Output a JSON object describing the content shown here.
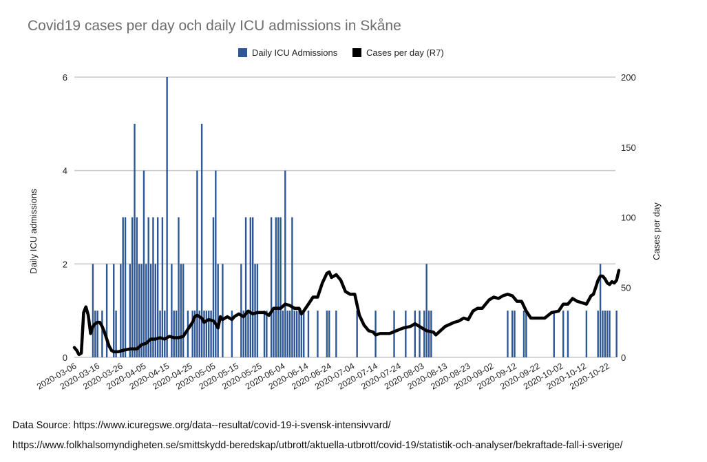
{
  "chart_data": {
    "type": "bar+line",
    "title": "Covid19 cases per day och daily ICU admissions in Skåne",
    "legend": [
      {
        "label": "Daily ICU Admissions",
        "color": "#2e5797"
      },
      {
        "label": "Cases per day (R7)",
        "color": "#000000"
      }
    ],
    "y_left": {
      "label": "Daily ICU admissions",
      "ticks": [
        "0",
        "2",
        "4",
        "6"
      ],
      "range": [
        0,
        6
      ]
    },
    "y_right": {
      "label": "Cases per day",
      "ticks": [
        "0",
        "50",
        "100",
        "150",
        "200"
      ],
      "range": [
        0,
        200
      ]
    },
    "x_axis": {
      "start_date": "2020-03-06",
      "end_date": "2020-10-27",
      "tick_labels": [
        "2020-03-06",
        "2020-03-16",
        "2020-03-26",
        "2020-04-05",
        "2020-04-15",
        "2020-04-25",
        "2020-05-05",
        "2020-05-15",
        "2020-05-25",
        "2020-06-04",
        "2020-06-14",
        "2020-06-24",
        "2020-07-04",
        "2020-07-14",
        "2020-07-24",
        "2020-08-03",
        "2020-08-13",
        "2020-08-23",
        "2020-09-02",
        "2020-09-12",
        "2020-09-22",
        "2020-10-02",
        "2020-10-12",
        "2020-10-22"
      ]
    },
    "grid": true,
    "legend_position": "top",
    "icu_series": {
      "name": "Daily ICU Admissions",
      "points": [
        [
          "2020-03-14",
          2
        ],
        [
          "2020-03-15",
          1
        ],
        [
          "2020-03-16",
          1
        ],
        [
          "2020-03-18",
          1
        ],
        [
          "2020-03-20",
          2
        ],
        [
          "2020-03-23",
          2
        ],
        [
          "2020-03-24",
          1
        ],
        [
          "2020-03-26",
          2
        ],
        [
          "2020-03-27",
          3
        ],
        [
          "2020-03-28",
          3
        ],
        [
          "2020-03-30",
          2
        ],
        [
          "2020-03-31",
          3
        ],
        [
          "2020-04-01",
          5
        ],
        [
          "2020-04-02",
          3
        ],
        [
          "2020-04-03",
          2
        ],
        [
          "2020-04-04",
          2
        ],
        [
          "2020-04-05",
          4
        ],
        [
          "2020-04-06",
          2
        ],
        [
          "2020-04-07",
          3
        ],
        [
          "2020-04-08",
          2
        ],
        [
          "2020-04-09",
          3
        ],
        [
          "2020-04-10",
          2
        ],
        [
          "2020-04-11",
          3
        ],
        [
          "2020-04-12",
          1
        ],
        [
          "2020-04-13",
          3
        ],
        [
          "2020-04-14",
          1
        ],
        [
          "2020-04-15",
          6
        ],
        [
          "2020-04-17",
          2
        ],
        [
          "2020-04-18",
          1
        ],
        [
          "2020-04-19",
          1
        ],
        [
          "2020-04-20",
          3
        ],
        [
          "2020-04-21",
          2
        ],
        [
          "2020-04-22",
          2
        ],
        [
          "2020-04-24",
          1
        ],
        [
          "2020-04-26",
          1
        ],
        [
          "2020-04-27",
          1
        ],
        [
          "2020-04-28",
          4
        ],
        [
          "2020-04-29",
          1
        ],
        [
          "2020-04-30",
          5
        ],
        [
          "2020-05-01",
          1
        ],
        [
          "2020-05-02",
          1
        ],
        [
          "2020-05-03",
          1
        ],
        [
          "2020-05-04",
          1
        ],
        [
          "2020-05-05",
          3
        ],
        [
          "2020-05-06",
          4
        ],
        [
          "2020-05-07",
          2
        ],
        [
          "2020-05-09",
          2
        ],
        [
          "2020-05-13",
          1
        ],
        [
          "2020-05-17",
          2
        ],
        [
          "2020-05-18",
          1
        ],
        [
          "2020-05-19",
          3
        ],
        [
          "2020-05-20",
          1
        ],
        [
          "2020-05-21",
          3
        ],
        [
          "2020-05-22",
          3
        ],
        [
          "2020-05-23",
          2
        ],
        [
          "2020-05-24",
          2
        ],
        [
          "2020-05-27",
          1
        ],
        [
          "2020-05-28",
          1
        ],
        [
          "2020-05-30",
          3
        ],
        [
          "2020-05-31",
          1
        ],
        [
          "2020-06-01",
          3
        ],
        [
          "2020-06-02",
          3
        ],
        [
          "2020-06-03",
          3
        ],
        [
          "2020-06-04",
          1
        ],
        [
          "2020-06-05",
          4
        ],
        [
          "2020-06-06",
          1
        ],
        [
          "2020-06-07",
          1
        ],
        [
          "2020-06-08",
          3
        ],
        [
          "2020-06-09",
          1
        ],
        [
          "2020-06-10",
          1
        ],
        [
          "2020-06-11",
          1
        ],
        [
          "2020-06-12",
          1
        ],
        [
          "2020-06-13",
          1
        ],
        [
          "2020-06-15",
          1
        ],
        [
          "2020-06-19",
          1
        ],
        [
          "2020-06-23",
          1
        ],
        [
          "2020-06-24",
          1
        ],
        [
          "2020-06-27",
          1
        ],
        [
          "2020-07-06",
          1
        ],
        [
          "2020-07-14",
          1
        ],
        [
          "2020-07-22",
          1
        ],
        [
          "2020-07-27",
          1
        ],
        [
          "2020-07-31",
          1
        ],
        [
          "2020-08-02",
          1
        ],
        [
          "2020-08-04",
          1
        ],
        [
          "2020-08-05",
          2
        ],
        [
          "2020-08-06",
          1
        ],
        [
          "2020-08-07",
          1
        ],
        [
          "2020-09-09",
          1
        ],
        [
          "2020-09-11",
          1
        ],
        [
          "2020-09-12",
          1
        ],
        [
          "2020-09-16",
          1
        ],
        [
          "2020-09-17",
          1
        ],
        [
          "2020-09-29",
          1
        ],
        [
          "2020-10-03",
          1
        ],
        [
          "2020-10-05",
          1
        ],
        [
          "2020-10-13",
          1
        ],
        [
          "2020-10-18",
          1
        ],
        [
          "2020-10-19",
          2
        ],
        [
          "2020-10-20",
          1
        ],
        [
          "2020-10-21",
          1
        ],
        [
          "2020-10-22",
          1
        ],
        [
          "2020-10-23",
          1
        ],
        [
          "2020-10-26",
          1
        ]
      ]
    },
    "cases_series": {
      "name": "Cases per day (R7)",
      "points": [
        [
          "2020-03-06",
          7
        ],
        [
          "2020-03-07",
          5
        ],
        [
          "2020-03-08",
          2
        ],
        [
          "2020-03-09",
          3
        ],
        [
          "2020-03-10",
          32
        ],
        [
          "2020-03-11",
          36
        ],
        [
          "2020-03-12",
          30
        ],
        [
          "2020-03-13",
          17
        ],
        [
          "2020-03-14",
          22
        ],
        [
          "2020-03-15",
          24
        ],
        [
          "2020-03-16",
          25
        ],
        [
          "2020-03-17",
          25
        ],
        [
          "2020-03-18",
          22
        ],
        [
          "2020-03-19",
          18
        ],
        [
          "2020-03-20",
          13
        ],
        [
          "2020-03-21",
          8
        ],
        [
          "2020-03-22",
          5
        ],
        [
          "2020-03-23",
          4
        ],
        [
          "2020-03-25",
          4
        ],
        [
          "2020-03-27",
          5
        ],
        [
          "2020-03-30",
          6
        ],
        [
          "2020-04-02",
          6
        ],
        [
          "2020-04-04",
          9
        ],
        [
          "2020-04-06",
          10
        ],
        [
          "2020-04-08",
          13
        ],
        [
          "2020-04-10",
          13
        ],
        [
          "2020-04-12",
          14
        ],
        [
          "2020-04-14",
          13
        ],
        [
          "2020-04-16",
          15
        ],
        [
          "2020-04-18",
          14
        ],
        [
          "2020-04-20",
          14
        ],
        [
          "2020-04-22",
          15
        ],
        [
          "2020-04-24",
          20
        ],
        [
          "2020-04-26",
          25
        ],
        [
          "2020-04-27",
          29
        ],
        [
          "2020-04-28",
          30
        ],
        [
          "2020-04-30",
          28
        ],
        [
          "2020-05-01",
          25
        ],
        [
          "2020-05-03",
          27
        ],
        [
          "2020-05-05",
          26
        ],
        [
          "2020-05-06",
          24
        ],
        [
          "2020-05-07",
          21
        ],
        [
          "2020-05-08",
          29
        ],
        [
          "2020-05-09",
          27
        ],
        [
          "2020-05-11",
          29
        ],
        [
          "2020-05-13",
          27
        ],
        [
          "2020-05-14",
          29
        ],
        [
          "2020-05-15",
          30
        ],
        [
          "2020-05-16",
          31
        ],
        [
          "2020-05-18",
          29
        ],
        [
          "2020-05-20",
          33
        ],
        [
          "2020-05-22",
          31
        ],
        [
          "2020-05-24",
          32
        ],
        [
          "2020-05-27",
          32
        ],
        [
          "2020-05-29",
          30
        ],
        [
          "2020-05-31",
          35
        ],
        [
          "2020-06-03",
          35
        ],
        [
          "2020-06-05",
          38
        ],
        [
          "2020-06-07",
          37
        ],
        [
          "2020-06-09",
          35
        ],
        [
          "2020-06-11",
          35
        ],
        [
          "2020-06-12",
          31
        ],
        [
          "2020-06-13",
          33
        ],
        [
          "2020-06-15",
          38
        ],
        [
          "2020-06-17",
          43
        ],
        [
          "2020-06-19",
          43
        ],
        [
          "2020-06-21",
          53
        ],
        [
          "2020-06-23",
          60
        ],
        [
          "2020-06-24",
          61
        ],
        [
          "2020-06-25",
          57
        ],
        [
          "2020-06-27",
          59
        ],
        [
          "2020-06-29",
          55
        ],
        [
          "2020-07-01",
          47
        ],
        [
          "2020-07-03",
          45
        ],
        [
          "2020-07-05",
          45
        ],
        [
          "2020-07-07",
          30
        ],
        [
          "2020-07-09",
          23
        ],
        [
          "2020-07-11",
          19
        ],
        [
          "2020-07-13",
          18
        ],
        [
          "2020-07-14",
          16
        ],
        [
          "2020-07-16",
          17
        ],
        [
          "2020-07-20",
          17
        ],
        [
          "2020-07-23",
          19
        ],
        [
          "2020-07-26",
          21
        ],
        [
          "2020-07-29",
          22
        ],
        [
          "2020-07-31",
          24
        ],
        [
          "2020-08-03",
          21
        ],
        [
          "2020-08-05",
          19
        ],
        [
          "2020-08-08",
          18
        ],
        [
          "2020-08-09",
          16
        ],
        [
          "2020-08-11",
          19
        ],
        [
          "2020-08-13",
          22
        ],
        [
          "2020-08-17",
          25
        ],
        [
          "2020-08-19",
          26
        ],
        [
          "2020-08-21",
          28
        ],
        [
          "2020-08-23",
          27
        ],
        [
          "2020-08-25",
          33
        ],
        [
          "2020-08-27",
          35
        ],
        [
          "2020-08-29",
          35
        ],
        [
          "2020-09-01",
          41
        ],
        [
          "2020-09-03",
          43
        ],
        [
          "2020-09-05",
          42
        ],
        [
          "2020-09-07",
          44
        ],
        [
          "2020-09-09",
          45
        ],
        [
          "2020-09-11",
          44
        ],
        [
          "2020-09-13",
          40
        ],
        [
          "2020-09-15",
          40
        ],
        [
          "2020-09-17",
          33
        ],
        [
          "2020-09-19",
          28
        ],
        [
          "2020-09-21",
          28
        ],
        [
          "2020-09-25",
          28
        ],
        [
          "2020-09-28",
          32
        ],
        [
          "2020-10-01",
          33
        ],
        [
          "2020-10-03",
          38
        ],
        [
          "2020-10-05",
          38
        ],
        [
          "2020-10-07",
          42
        ],
        [
          "2020-10-09",
          40
        ],
        [
          "2020-10-11",
          39
        ],
        [
          "2020-10-13",
          38
        ],
        [
          "2020-10-15",
          44
        ],
        [
          "2020-10-16",
          45
        ],
        [
          "2020-10-17",
          50
        ],
        [
          "2020-10-18",
          55
        ],
        [
          "2020-10-19",
          58
        ],
        [
          "2020-10-20",
          58
        ],
        [
          "2020-10-21",
          56
        ],
        [
          "2020-10-22",
          53
        ],
        [
          "2020-10-23",
          52
        ],
        [
          "2020-10-24",
          54
        ],
        [
          "2020-10-25",
          53
        ],
        [
          "2020-10-26",
          55
        ],
        [
          "2020-10-27",
          62
        ]
      ]
    }
  },
  "sources": [
    "Data Source: https://www.icuregswe.org/data--resultat/covid-19-i-svensk-intensivvard/",
    "https://www.folkhalsomyndigheten.se/smittskydd-beredskap/utbrott/aktuella-utbrott/covid-19/statistik-och-analyser/bekraftade-fall-i-sverige/"
  ]
}
